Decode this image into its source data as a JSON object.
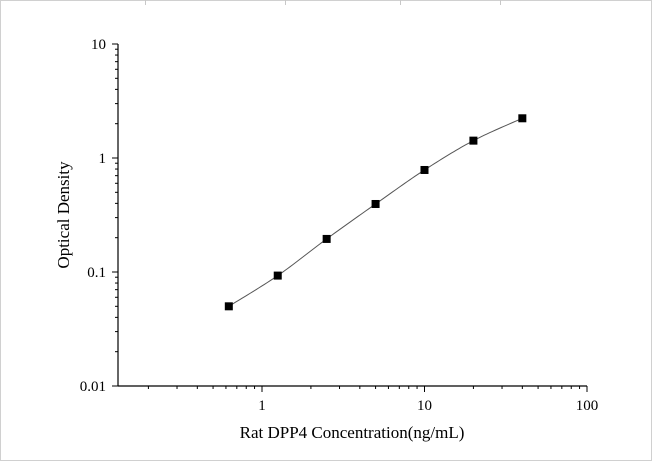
{
  "chart_data": {
    "type": "scatter",
    "xlabel": "Rat DPP4 Concentration(ng/mL)",
    "ylabel": "Optical Density",
    "xscale": "log",
    "yscale": "log",
    "xlim": [
      0.13,
      100
    ],
    "ylim": [
      0.01,
      10
    ],
    "x_ticks": [
      1,
      10,
      100
    ],
    "x_tick_labels": [
      "1",
      "10",
      "100"
    ],
    "y_ticks": [
      0.01,
      0.1,
      1,
      10
    ],
    "y_tick_labels": [
      "0.01",
      "0.1",
      "1",
      "10"
    ],
    "grid": false,
    "legend": "none",
    "fit_curve": true,
    "x": [
      0.625,
      1.25,
      2.5,
      5,
      10,
      20,
      40
    ],
    "y": [
      0.05,
      0.093,
      0.195,
      0.395,
      0.785,
      1.42,
      2.23
    ],
    "marker_color": "#000000",
    "line_color": "#555555"
  }
}
